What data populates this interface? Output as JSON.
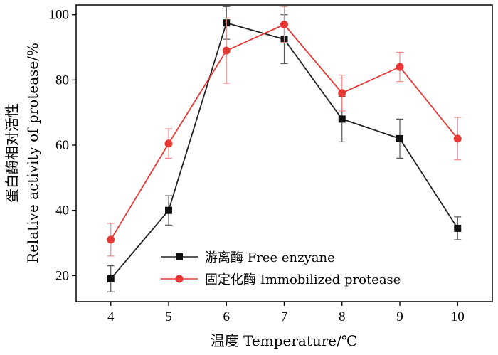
{
  "chart_data": {
    "type": "line",
    "title": "",
    "xlabel": "温度 Temperature/℃",
    "ylabel_cn": "蛋白酶相对活性",
    "ylabel_en": "Relative activity of protease/%",
    "x": [
      4,
      5,
      6,
      7,
      8,
      9,
      10
    ],
    "xlim": [
      3.4,
      10.6
    ],
    "ylim": [
      12,
      103
    ],
    "x_ticks": [
      "4",
      "5",
      "6",
      "7",
      "8",
      "9",
      "10"
    ],
    "y_ticks": [
      "20",
      "40",
      "60",
      "80",
      "100"
    ],
    "y_tick_values": [
      20,
      40,
      60,
      80,
      100
    ],
    "grid": false,
    "legend_position": "bottom-center",
    "series": [
      {
        "name": "游离酶 Free enzyane",
        "color": "#222222",
        "marker": "square",
        "values": [
          19,
          40,
          97.5,
          92.5,
          68,
          62,
          34.5
        ],
        "errors": [
          4,
          4.5,
          5,
          7.5,
          7,
          6,
          3.5
        ]
      },
      {
        "name": "固定化酶 Immobilized protease",
        "color": "#e53935",
        "marker": "circle",
        "values": [
          31,
          60.5,
          89,
          97,
          76,
          84,
          62
        ],
        "errors": [
          5,
          4.5,
          10,
          5.5,
          5.5,
          4.5,
          6.5
        ]
      }
    ]
  }
}
